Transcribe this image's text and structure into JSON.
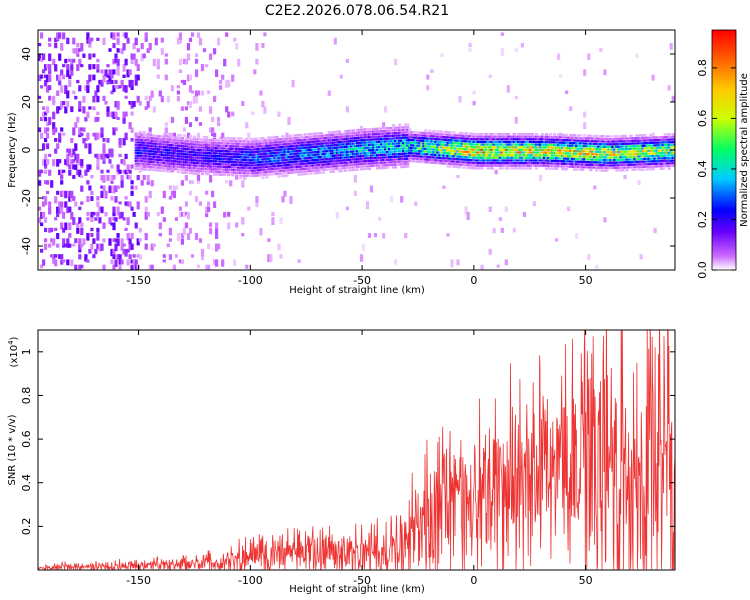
{
  "title": "C2E2.2026.078.06.54.R21",
  "chart_data": [
    {
      "type": "heatmap",
      "title": "C2E2.2026.078.06.54.R21",
      "xlabel": "Height of straight line (km)",
      "ylabel": "Frequency (Hz)",
      "xlim": [
        -195,
        90
      ],
      "ylim": [
        -50,
        50
      ],
      "x_ticks": [
        -150,
        -100,
        -50,
        0,
        50
      ],
      "y_ticks": [
        -40,
        -20,
        0,
        20,
        40
      ],
      "colorbar": {
        "label": "Normalized spectral amplitude",
        "range": [
          0,
          0.95
        ],
        "ticks": [
          "0.0",
          "0.2",
          "0.4",
          "0.6",
          "0.8"
        ],
        "colors": [
          "#ffffff",
          "#cc66ff",
          "#6600ff",
          "#0000ff",
          "#00ccff",
          "#00ff66",
          "#ccff00",
          "#ffcc00",
          "#ff6600",
          "#ff0000"
        ]
      },
      "ridge": {
        "description_points_x": [
          -150,
          -125,
          -100,
          -75,
          -50,
          -30,
          0,
          30,
          60,
          90
        ],
        "center_freq": [
          0,
          -2,
          -3,
          -1,
          1,
          2,
          0,
          0,
          -1,
          0
        ],
        "peak_amplitude": [
          0.35,
          0.3,
          0.4,
          0.45,
          0.5,
          0.55,
          0.9,
          0.85,
          0.8,
          0.75
        ]
      }
    },
    {
      "type": "line",
      "xlabel": "Height of straight line (km)",
      "ylabel": "SNR (10 * v/v)",
      "y_scale_label": "(x10",
      "y_scale_exp": "4",
      "scale_suffix": ")",
      "xlim": [
        -195,
        90
      ],
      "ylim": [
        0,
        1.1
      ],
      "x_ticks": [
        -150,
        -100,
        -50,
        0,
        50
      ],
      "y_ticks": [
        0.2,
        0.4,
        0.6,
        0.8,
        1
      ],
      "y_tick_labels": [
        "0.2",
        "0.4",
        "0.6",
        "0.8",
        "1"
      ],
      "color": "#ee3333",
      "envelope": {
        "x": [
          -195,
          -150,
          -110,
          -100,
          -75,
          -50,
          -35,
          -25,
          -20,
          0,
          20,
          40,
          55,
          60,
          70,
          80,
          90
        ],
        "mean": [
          0.01,
          0.02,
          0.04,
          0.07,
          0.08,
          0.08,
          0.12,
          0.2,
          0.28,
          0.35,
          0.42,
          0.5,
          0.55,
          0.52,
          0.45,
          0.55,
          0.4
        ],
        "spread": [
          0.01,
          0.015,
          0.03,
          0.05,
          0.06,
          0.06,
          0.1,
          0.15,
          0.2,
          0.2,
          0.25,
          0.3,
          0.35,
          0.38,
          0.4,
          0.45,
          0.4
        ]
      }
    }
  ]
}
